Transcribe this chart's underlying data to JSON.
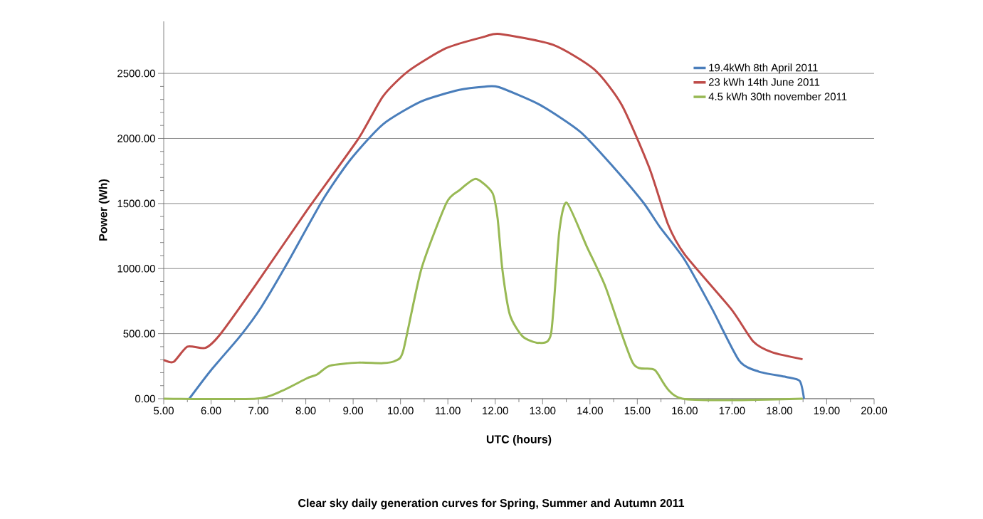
{
  "chart_data": {
    "type": "line",
    "title": "Clear sky daily generation curves for Spring, Summer and Autumn 2011",
    "xlabel": "UTC (hours)",
    "ylabel": "Power (Wh)",
    "xlim": [
      5,
      20
    ],
    "ylim": [
      0,
      2900
    ],
    "xticks": [
      {
        "value": 5,
        "label": "5.00"
      },
      {
        "value": 6,
        "label": "6.00"
      },
      {
        "value": 7,
        "label": "7.00"
      },
      {
        "value": 8,
        "label": "8.00"
      },
      {
        "value": 9,
        "label": "9.00"
      },
      {
        "value": 10,
        "label": "10.00"
      },
      {
        "value": 11,
        "label": "11.00"
      },
      {
        "value": 12,
        "label": "12.00"
      },
      {
        "value": 13,
        "label": "13.00"
      },
      {
        "value": 14,
        "label": "14.00"
      },
      {
        "value": 15,
        "label": "15.00"
      },
      {
        "value": 16,
        "label": "16.00"
      },
      {
        "value": 17,
        "label": "17.00"
      },
      {
        "value": 18,
        "label": "18.00"
      },
      {
        "value": 19,
        "label": "19.00"
      },
      {
        "value": 20,
        "label": "20.00"
      }
    ],
    "yticks": [
      {
        "value": 0,
        "label": "0.00"
      },
      {
        "value": 500,
        "label": "500.00"
      },
      {
        "value": 1000,
        "label": "1000.00"
      },
      {
        "value": 1500,
        "label": "1500.00"
      },
      {
        "value": 2000,
        "label": "2000.00"
      },
      {
        "value": 2500,
        "label": "2500.00"
      }
    ],
    "grid": "y",
    "legend": "top right",
    "marker": "none",
    "line_style": "solid",
    "series": [
      {
        "name": "19.4kWh 8th April 2011",
        "color": "#4a7ebb",
        "x": [
          5.54,
          5.99,
          6.63,
          7.06,
          7.6,
          8.35,
          8.94,
          9.63,
          10.44,
          11.24,
          11.78,
          12.07,
          12.94,
          13.8,
          14.5,
          15.13,
          15.48,
          16.0,
          16.58,
          17.15,
          17.56,
          18.14,
          18.43,
          18.52
        ],
        "values": [
          0,
          215,
          488,
          703,
          1035,
          1523,
          1836,
          2109,
          2285,
          2373,
          2398,
          2395,
          2259,
          2050,
          1778,
          1506,
          1318,
          1067,
          690,
          293,
          209,
          167,
          136,
          0
        ]
      },
      {
        "name": "23 kWh 14th June 2011",
        "color": "#be4b48",
        "x": [
          5.0,
          5.21,
          5.5,
          5.88,
          6.2,
          6.95,
          8.02,
          9.1,
          9.63,
          10.17,
          10.97,
          11.78,
          12.1,
          13.22,
          14.09,
          14.67,
          15.25,
          15.65,
          16.0,
          16.98,
          17.45,
          17.85,
          18.49
        ],
        "values": [
          297,
          283,
          400,
          390,
          498,
          879,
          1445,
          1992,
          2324,
          2519,
          2695,
          2783,
          2803,
          2720,
          2531,
          2259,
          1778,
          1339,
          1109,
          690,
          439,
          356,
          303
        ]
      },
      {
        "name": "4.5 kWh 30th november 2011",
        "color": "#98b954",
        "x": [
          5.0,
          6.95,
          7.49,
          8.02,
          8.24,
          8.51,
          9.1,
          9.63,
          9.9,
          10.06,
          10.44,
          10.97,
          11.24,
          11.59,
          11.94,
          12.05,
          12.15,
          12.31,
          12.58,
          12.92,
          13.18,
          13.35,
          13.51,
          13.93,
          14.33,
          14.91,
          15.37,
          15.95,
          18.49
        ],
        "values": [
          0,
          0,
          59,
          156,
          186,
          254,
          277,
          273,
          293,
          371,
          996,
          1504,
          1601,
          1689,
          1582,
          1387,
          996,
          644,
          478,
          429,
          502,
          1276,
          1506,
          1172,
          858,
          272,
          220,
          0,
          0
        ]
      }
    ]
  }
}
